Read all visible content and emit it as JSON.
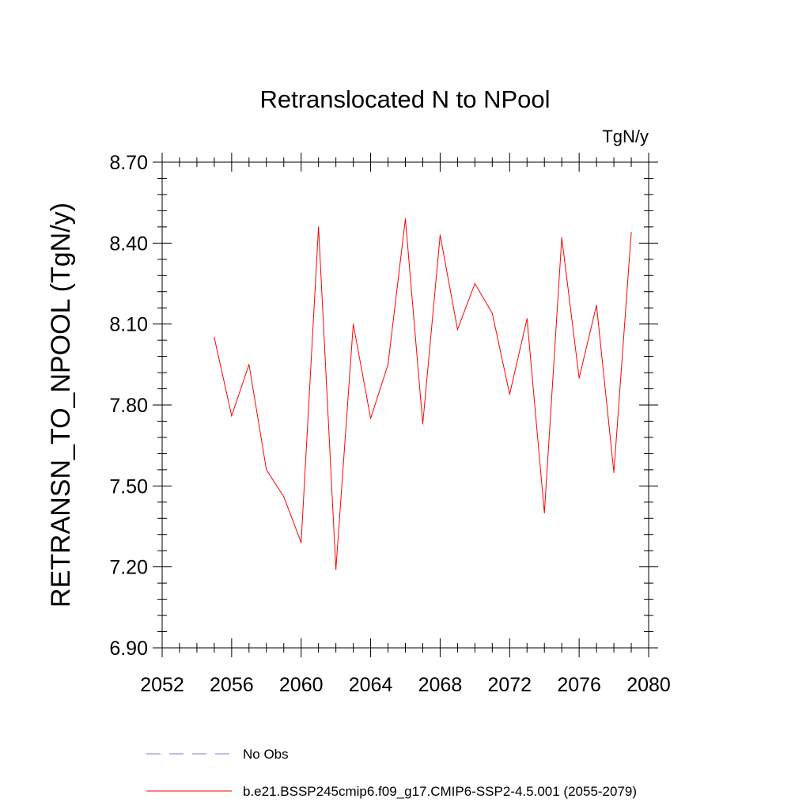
{
  "chart_data": {
    "type": "line",
    "title": "Retranslocated N to NPool",
    "units": "TgN/y",
    "ylabel": "RETRANSN_TO_NPOOL  (TgN/y)",
    "xlabel": "",
    "xlim": [
      2052,
      2080
    ],
    "ylim": [
      6.9,
      8.7
    ],
    "xticks": [
      "2052",
      "2056",
      "2060",
      "2064",
      "2068",
      "2072",
      "2076",
      "2080"
    ],
    "xtick_values": [
      2052,
      2056,
      2060,
      2064,
      2068,
      2072,
      2076,
      2080
    ],
    "yticks": [
      "6.90",
      "7.20",
      "7.50",
      "7.80",
      "8.10",
      "8.40",
      "8.70"
    ],
    "ytick_values": [
      6.9,
      7.2,
      7.5,
      7.8,
      8.1,
      8.4,
      8.7
    ],
    "grid": false,
    "legend_position": "bottom",
    "series": [
      {
        "name": "b.e21.BSSP245cmip6.f09_g17.CMIP6-SSP2-4.5.001 (2055-2079)",
        "color": "#ff0000",
        "style": "solid",
        "x": [
          2055,
          2056,
          2057,
          2058,
          2059,
          2060,
          2061,
          2062,
          2063,
          2064,
          2065,
          2066,
          2067,
          2068,
          2069,
          2070,
          2071,
          2072,
          2073,
          2074,
          2075,
          2076,
          2077,
          2078,
          2079
        ],
        "values": [
          8.05,
          7.76,
          7.95,
          7.56,
          7.46,
          7.29,
          8.46,
          7.19,
          8.1,
          7.75,
          7.95,
          8.49,
          7.73,
          8.43,
          8.08,
          8.25,
          8.14,
          7.84,
          8.12,
          7.4,
          8.42,
          7.9,
          8.17,
          7.55,
          8.44
        ]
      }
    ],
    "legend": [
      {
        "label": "No Obs",
        "color": "#7d7dc8",
        "style": "dashed"
      },
      {
        "label": "b.e21.BSSP245cmip6.f09_g17.CMIP6-SSP2-4.5.001 (2055-2079)",
        "color": "#ff0000",
        "style": "solid"
      }
    ]
  }
}
